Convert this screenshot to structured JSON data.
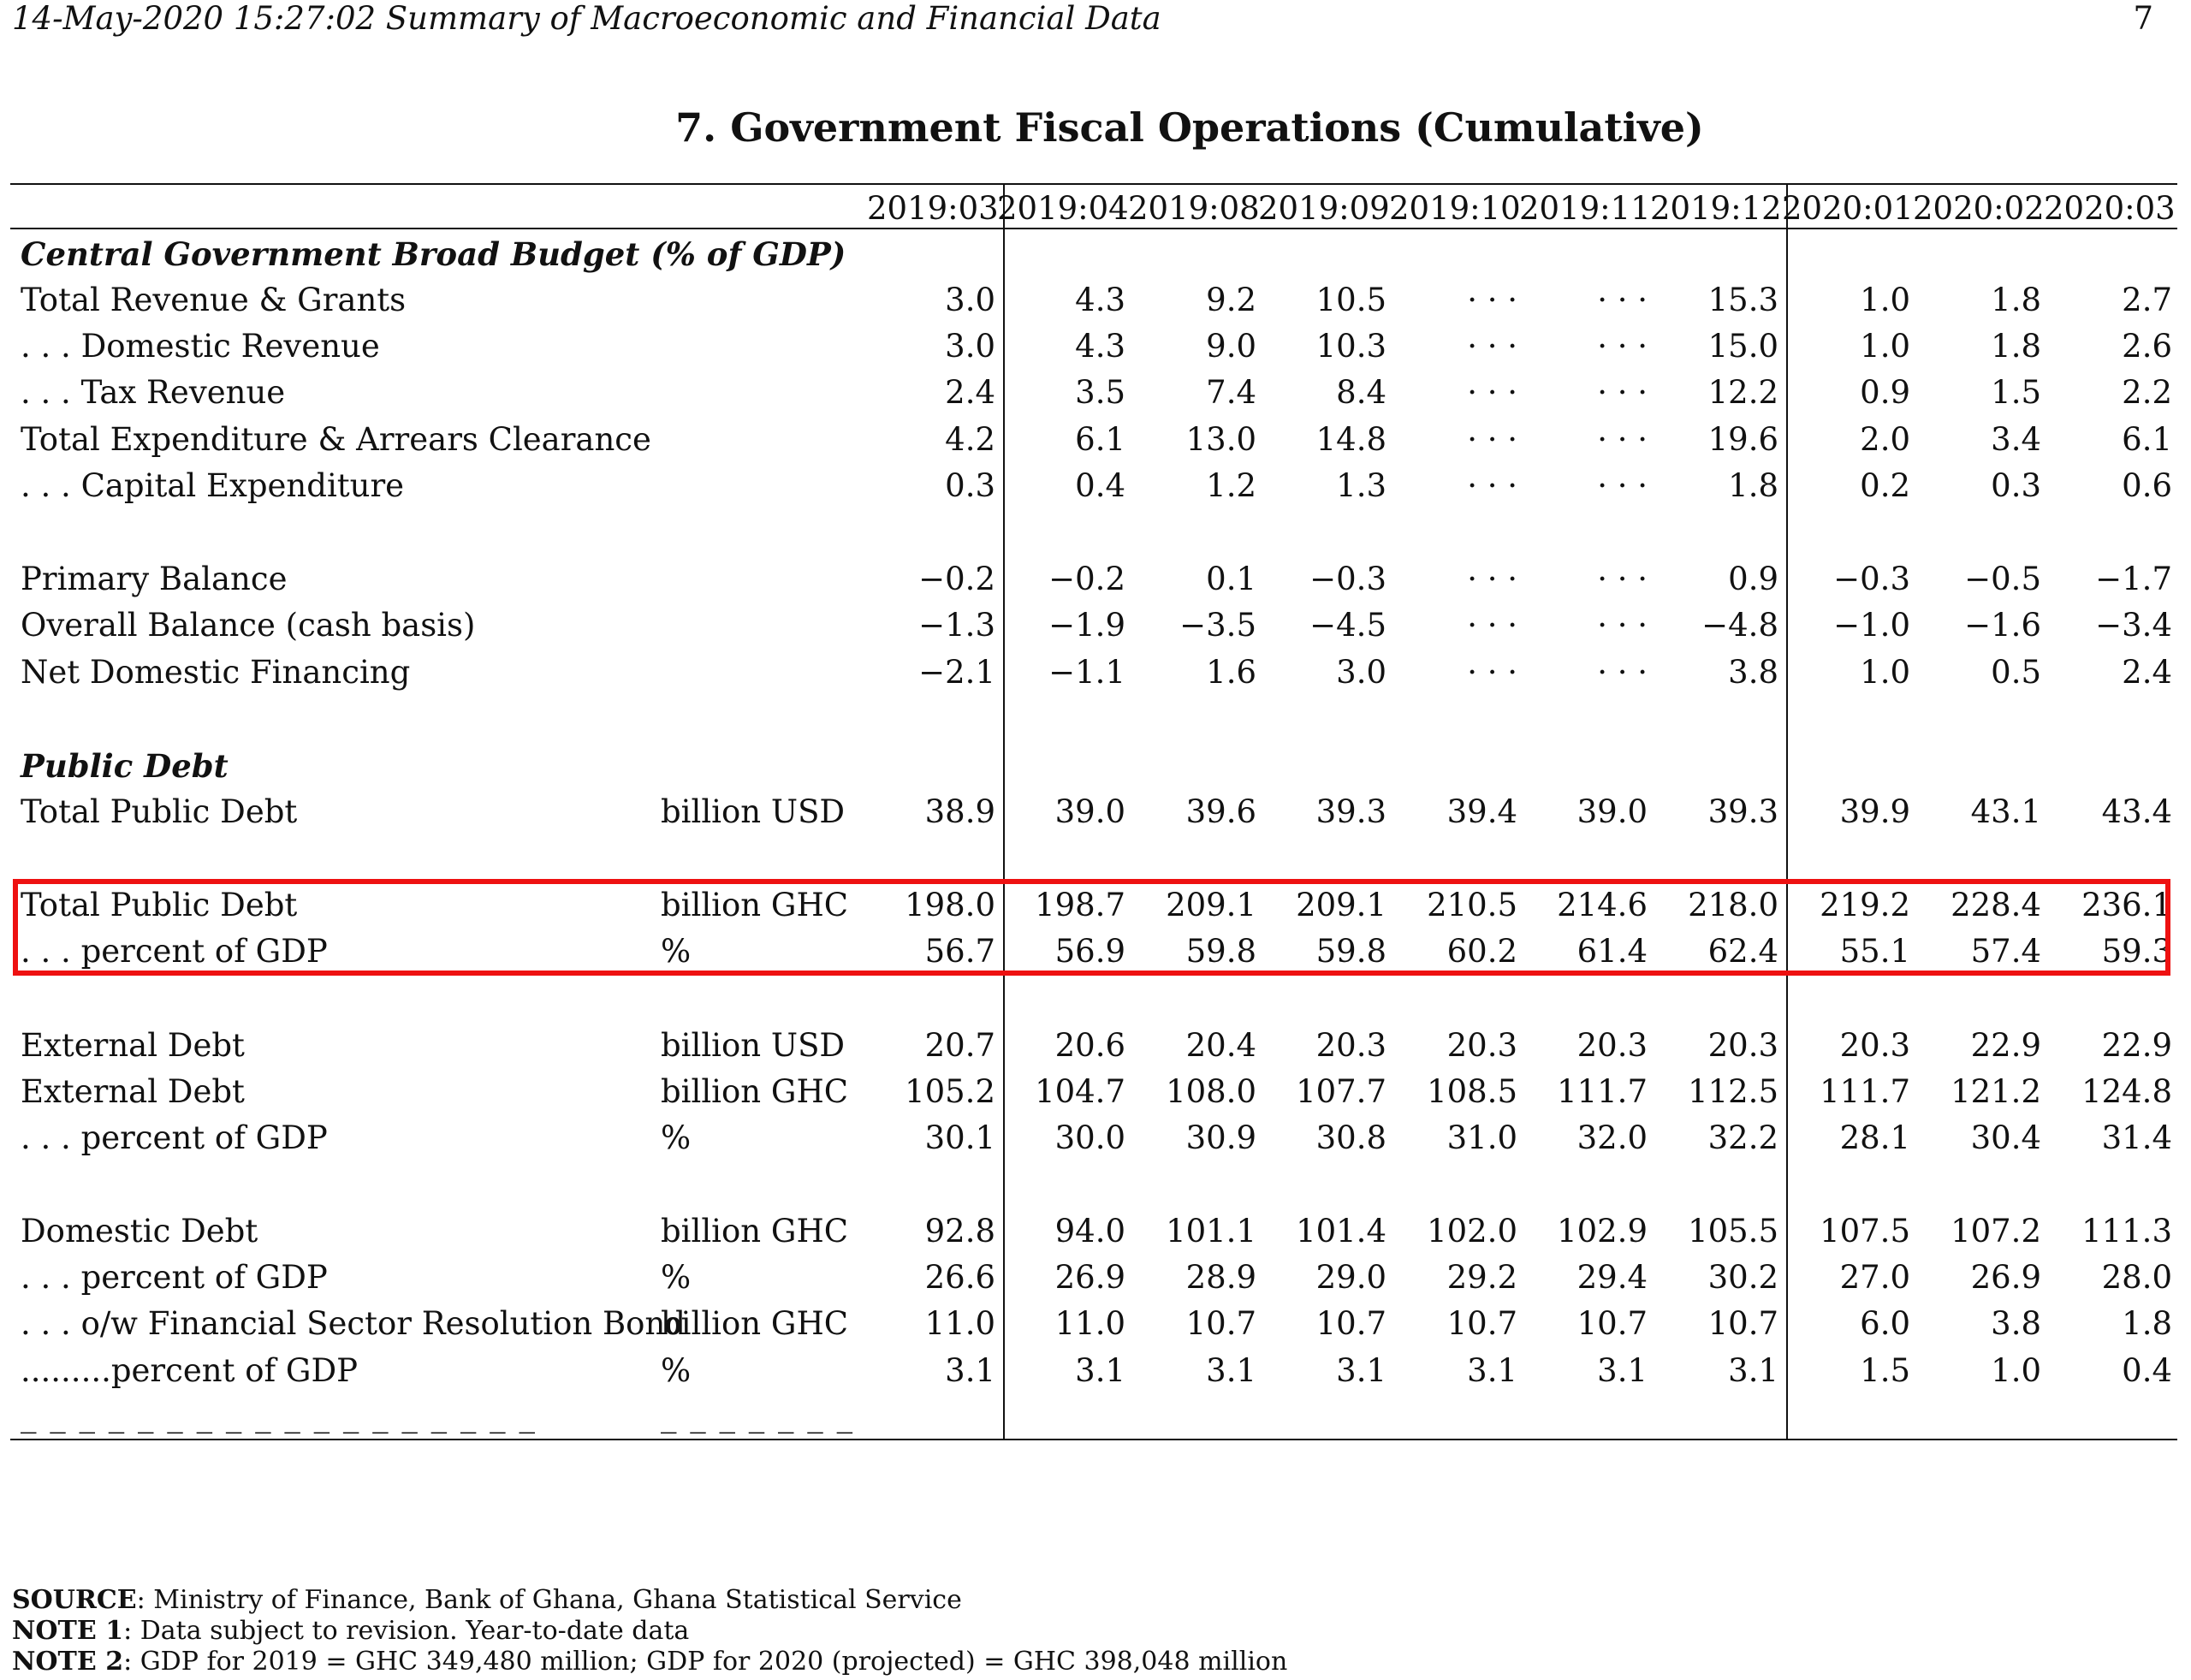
{
  "header": {
    "running_title": "14-May-2020 15:27:02 Summary of Macroeconomic and Financial Data",
    "page_number": "7"
  },
  "title": "7.  Government Fiscal Operations (Cumulative)",
  "columns": [
    "2019:03",
    "2019:04",
    "2019:08",
    "2019:09",
    "2019:10",
    "2019:11",
    "2019:12",
    "2020:01",
    "2020:02",
    "2020:03"
  ],
  "sections": {
    "broad_budget": "Central Government Broad Budget (% of GDP)",
    "public_debt": "Public Debt"
  },
  "rows": [
    {
      "label": "Total Revenue & Grants",
      "unit": "",
      "values": [
        "3.0",
        "4.3",
        "9.2",
        "10.5",
        "· · ·",
        "· · ·",
        "15.3",
        "1.0",
        "1.8",
        "2.7"
      ]
    },
    {
      "label": ". . .  Domestic Revenue",
      "unit": "",
      "values": [
        "3.0",
        "4.3",
        "9.0",
        "10.3",
        "· · ·",
        "· · ·",
        "15.0",
        "1.0",
        "1.8",
        "2.6"
      ]
    },
    {
      "label": ". . .  Tax Revenue",
      "unit": "",
      "values": [
        "2.4",
        "3.5",
        "7.4",
        "8.4",
        "· · ·",
        "· · ·",
        "12.2",
        "0.9",
        "1.5",
        "2.2"
      ]
    },
    {
      "label": "Total Expenditure & Arrears Clearance",
      "unit": "",
      "values": [
        "4.2",
        "6.1",
        "13.0",
        "14.8",
        "· · ·",
        "· · ·",
        "19.6",
        "2.0",
        "3.4",
        "6.1"
      ]
    },
    {
      "label": ". . . Capital Expenditure",
      "unit": "",
      "values": [
        "0.3",
        "0.4",
        "1.2",
        "1.3",
        "· · ·",
        "· · ·",
        "1.8",
        "0.2",
        "0.3",
        "0.6"
      ]
    },
    {
      "label": "Primary Balance",
      "unit": "",
      "values": [
        "−0.2",
        "−0.2",
        "0.1",
        "−0.3",
        "· · ·",
        "· · ·",
        "0.9",
        "−0.3",
        "−0.5",
        "−1.7"
      ]
    },
    {
      "label": "Overall Balance (cash basis)",
      "unit": "",
      "values": [
        "−1.3",
        "−1.9",
        "−3.5",
        "−4.5",
        "· · ·",
        "· · ·",
        "−4.8",
        "−1.0",
        "−1.6",
        "−3.4"
      ]
    },
    {
      "label": "Net Domestic Financing",
      "unit": "",
      "values": [
        "−2.1",
        "−1.1",
        "1.6",
        "3.0",
        "· · ·",
        "· · ·",
        "3.8",
        "1.0",
        "0.5",
        "2.4"
      ]
    },
    {
      "label": "Total Public Debt",
      "unit": "billion USD",
      "values": [
        "38.9",
        "39.0",
        "39.6",
        "39.3",
        "39.4",
        "39.0",
        "39.3",
        "39.9",
        "43.1",
        "43.4"
      ]
    },
    {
      "label": "Total Public Debt",
      "unit": "billion GHC",
      "values": [
        "198.0",
        "198.7",
        "209.1",
        "209.1",
        "210.5",
        "214.6",
        "218.0",
        "219.2",
        "228.4",
        "236.1"
      ]
    },
    {
      "label": ". . . percent of GDP",
      "unit": "%",
      "values": [
        "56.7",
        "56.9",
        "59.8",
        "59.8",
        "60.2",
        "61.4",
        "62.4",
        "55.1",
        "57.4",
        "59.3"
      ]
    },
    {
      "label": "External Debt",
      "unit": "billion USD",
      "values": [
        "20.7",
        "20.6",
        "20.4",
        "20.3",
        "20.3",
        "20.3",
        "20.3",
        "20.3",
        "22.9",
        "22.9"
      ]
    },
    {
      "label": "External Debt",
      "unit": "billion GHC",
      "values": [
        "105.2",
        "104.7",
        "108.0",
        "107.7",
        "108.5",
        "111.7",
        "112.5",
        "111.7",
        "121.2",
        "124.8"
      ]
    },
    {
      "label": ". . . percent of GDP",
      "unit": "%",
      "values": [
        "30.1",
        "30.0",
        "30.9",
        "30.8",
        "31.0",
        "32.0",
        "32.2",
        "28.1",
        "30.4",
        "31.4"
      ]
    },
    {
      "label": "Domestic Debt",
      "unit": "billion GHC",
      "values": [
        "92.8",
        "94.0",
        "101.1",
        "101.4",
        "102.0",
        "102.9",
        "105.5",
        "107.5",
        "107.2",
        "111.3"
      ]
    },
    {
      "label": ". . . percent of GDP",
      "unit": "%",
      "values": [
        "26.6",
        "26.9",
        "28.9",
        "29.0",
        "29.2",
        "29.4",
        "30.2",
        "27.0",
        "26.9",
        "28.0"
      ]
    },
    {
      "label": ". . . o/w Financial Sector Resolution Bond",
      "unit": "billion GHC",
      "values": [
        "11.0",
        "11.0",
        "10.7",
        "10.7",
        "10.7",
        "10.7",
        "10.7",
        "6.0",
        "3.8",
        "1.8"
      ]
    },
    {
      "label": ".........percent of GDP",
      "unit": "%",
      "values": [
        "3.1",
        "3.1",
        "3.1",
        "3.1",
        "3.1",
        "3.1",
        "3.1",
        "1.5",
        "1.0",
        "0.4"
      ]
    }
  ],
  "dash_label": "_ _ _ _ _ _ _ _ _ _ _ _ _ _ _ _ _ _",
  "dash_unit": "_ _ _ _ _ _ _",
  "footer": {
    "source_label": "SOURCE",
    "source_text": ": Ministry of Finance, Bank of Ghana, Ghana Statistical Service",
    "note1_label": "NOTE 1",
    "note1_text": ": Data subject to revision. Year-to-date data",
    "note2_label": "NOTE 2",
    "note2_text": ": GDP for 2019 = GHC 349,480 million; GDP for 2020 (projected) = GHC 398,048 million"
  },
  "colors": {
    "highlight_box": "#ee1111"
  }
}
